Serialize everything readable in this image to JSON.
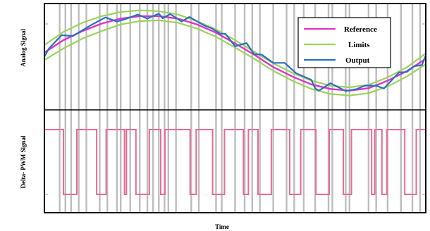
{
  "chart_data": [
    {
      "type": "line",
      "panel": "top",
      "ylabel": "Analog Signal",
      "x": [
        0,
        0.05,
        0.1,
        0.15,
        0.2,
        0.25,
        0.3,
        0.35,
        0.4,
        0.45,
        0.5,
        0.55,
        0.6,
        0.65,
        0.7,
        0.75,
        0.8,
        0.85,
        0.9,
        0.95,
        1.0
      ],
      "series": [
        {
          "name": "Reference",
          "color": "#e033c6",
          "y": [
            0.1,
            0.4,
            0.62,
            0.8,
            0.92,
            0.98,
            0.98,
            0.92,
            0.78,
            0.58,
            0.32,
            0.05,
            -0.25,
            -0.48,
            -0.67,
            -0.78,
            -0.82,
            -0.76,
            -0.58,
            -0.35,
            -0.05
          ]
        },
        {
          "name": "Limits",
          "color": "#9bd35a",
          "y": [
            0.28,
            0.6,
            0.82,
            0.98,
            1.08,
            1.12,
            1.1,
            1.02,
            0.86,
            0.66,
            0.4,
            0.12,
            -0.16,
            -0.39,
            -0.58,
            -0.7,
            -0.74,
            -0.68,
            -0.5,
            -0.26,
            0.08
          ]
        },
        {
          "name": "Limits",
          "color": "#9bd35a",
          "y": [
            -0.08,
            0.2,
            0.44,
            0.62,
            0.78,
            0.86,
            0.88,
            0.82,
            0.68,
            0.48,
            0.22,
            -0.05,
            -0.34,
            -0.58,
            -0.78,
            -0.9,
            -0.94,
            -0.88,
            -0.72,
            -0.48,
            -0.18
          ]
        },
        {
          "name": "Output",
          "color": "#2a6fc0",
          "x": [
            0,
            0.012,
            0.045,
            0.075,
            0.12,
            0.16,
            0.19,
            0.21,
            0.245,
            0.27,
            0.3,
            0.31,
            0.33,
            0.36,
            0.38,
            0.42,
            0.44,
            0.46,
            0.475,
            0.5,
            0.53,
            0.55,
            0.57,
            0.6,
            0.63,
            0.66,
            0.68,
            0.7,
            0.71,
            0.72,
            0.75,
            0.79,
            0.82,
            0.84,
            0.87,
            0.89,
            0.93,
            0.95,
            0.97,
            0.99,
            1.0
          ],
          "y": [
            0.0,
            0.2,
            0.52,
            0.5,
            0.75,
            0.95,
            0.85,
            0.9,
            1.02,
            0.92,
            1.04,
            0.93,
            1.03,
            0.85,
            0.96,
            0.75,
            0.68,
            0.56,
            0.55,
            0.25,
            0.33,
            0.06,
            0.05,
            -0.15,
            -0.15,
            -0.4,
            -0.48,
            -0.56,
            -0.77,
            -0.82,
            -0.64,
            -0.83,
            -0.78,
            -0.7,
            -0.7,
            -0.77,
            -0.38,
            -0.37,
            -0.23,
            -0.2,
            0.03
          ]
        }
      ],
      "legend": {
        "position": "top-right",
        "entries": [
          "Reference",
          "Limits",
          "Output"
        ]
      }
    },
    {
      "type": "line",
      "panel": "bottom",
      "xlabel": "Time",
      "ylabel": "Delta- PWM Signal",
      "series": [
        {
          "name": "Delta- PWM Signal",
          "color": "#e86a95",
          "levels": [
            1,
            0,
            1,
            0,
            1,
            0,
            1,
            0,
            1,
            0,
            1,
            0,
            1,
            0,
            1,
            0,
            1,
            0,
            1,
            0,
            1,
            0,
            1,
            0,
            1,
            0,
            1,
            0,
            1,
            0,
            1,
            0
          ],
          "edges": [
            0.0,
            0.05,
            0.085,
            0.137,
            0.162,
            0.21,
            0.215,
            0.24,
            0.275,
            0.305,
            0.316,
            0.382,
            0.398,
            0.441,
            0.472,
            0.522,
            0.535,
            0.56,
            0.595,
            0.643,
            0.672,
            0.712,
            0.747,
            0.784,
            0.805,
            0.858,
            0.866,
            0.885,
            0.898,
            0.945,
            0.975,
            1.0
          ]
        }
      ]
    }
  ],
  "grid": {
    "vertical_line_color": "#bdbdbd",
    "vertical_line_x": [
      0.04,
      0.055,
      0.07,
      0.09,
      0.11,
      0.145,
      0.165,
      0.19,
      0.2,
      0.225,
      0.25,
      0.27,
      0.285,
      0.3,
      0.315,
      0.325,
      0.345,
      0.385,
      0.405,
      0.45,
      0.465,
      0.5,
      0.525,
      0.545,
      0.565,
      0.6,
      0.635,
      0.655,
      0.68,
      0.71,
      0.745,
      0.755,
      0.79,
      0.8,
      0.85,
      0.87,
      0.9,
      0.935,
      0.965,
      0.985
    ]
  }
}
